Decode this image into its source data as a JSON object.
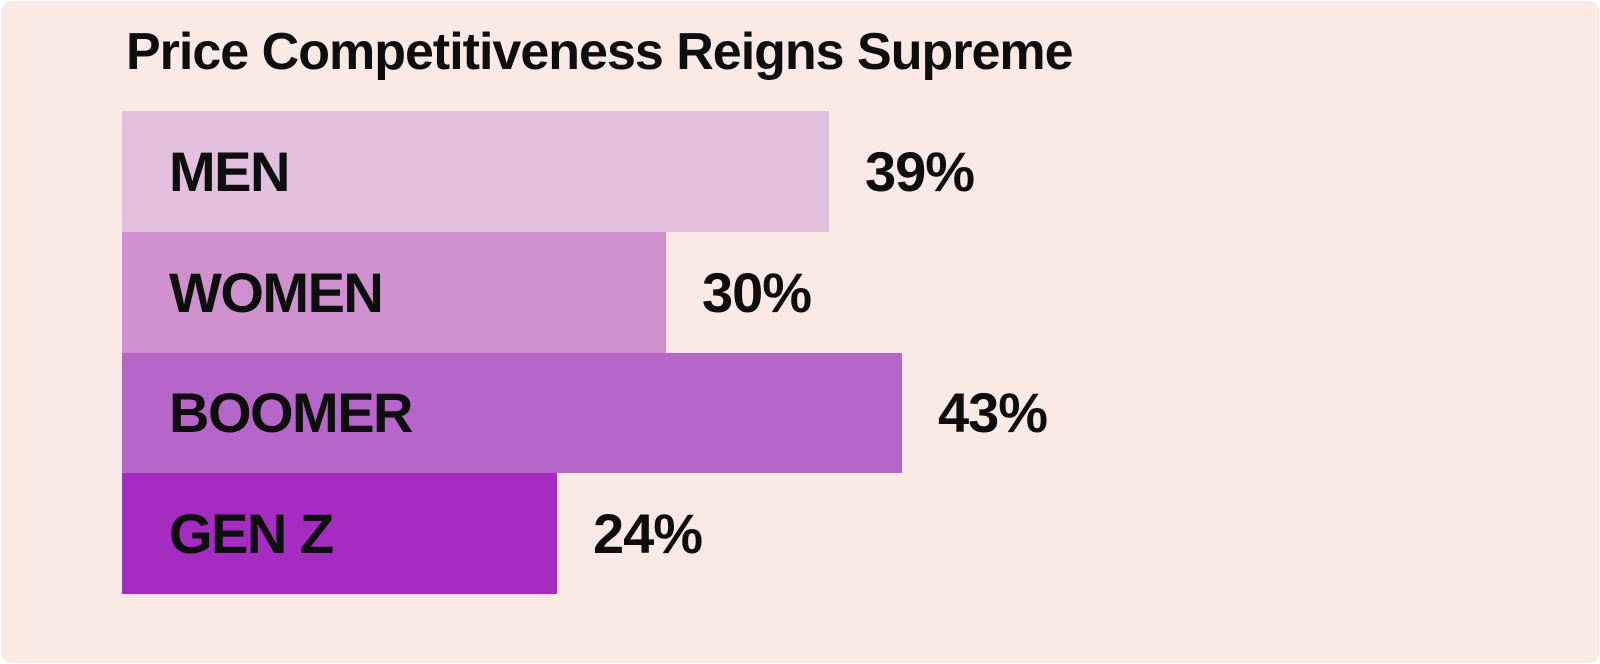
{
  "title": "Price Competitiveness Reigns Supreme",
  "colors": {
    "background": "#FBE9E5",
    "text": "#0E0E0E",
    "bar_men": "#E2BFDF",
    "bar_women": "#CF91CE",
    "bar_boomer": "#B666C8",
    "bar_genz": "#A52CC0"
  },
  "chart_data": {
    "type": "bar",
    "orientation": "horizontal",
    "title": "Price Competitiveness Reigns Supreme",
    "categories": [
      "MEN",
      "WOMEN",
      "BOOMER",
      "GEN Z"
    ],
    "values": [
      39,
      30,
      43,
      24
    ],
    "value_labels": [
      "39%",
      "30%",
      "43%",
      "24%"
    ],
    "unit": "%",
    "bar_colors": [
      "#E2BFDF",
      "#CF91CE",
      "#B666C8",
      "#A52CC0"
    ],
    "category_label_position": "inside-bar-left",
    "value_label_position": "right-of-bar",
    "axes": "none",
    "grid": false,
    "legend": "none"
  }
}
